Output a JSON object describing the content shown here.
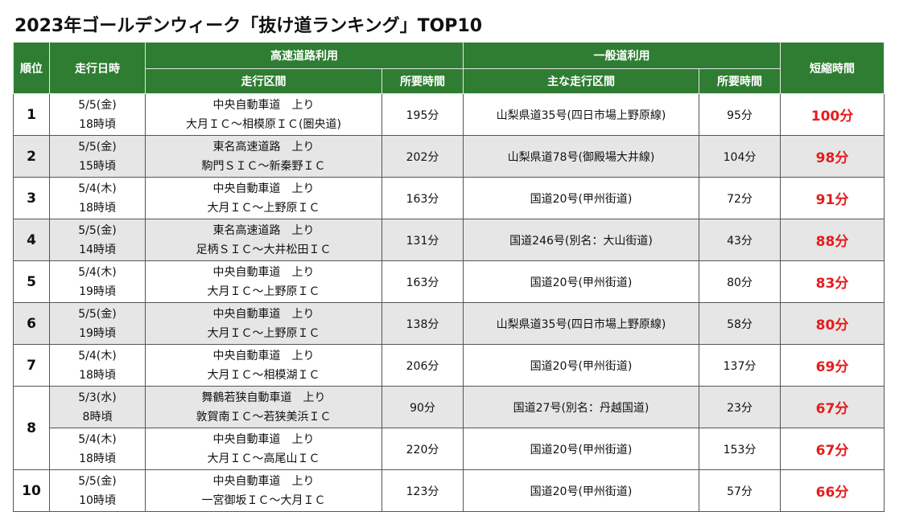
{
  "title": "2023年ゴールデンウィーク「抜け道ランキング」TOP10",
  "header": {
    "rank": "順位",
    "datetime": "走行日時",
    "highway_group": "高速道路利用",
    "highway_section": "走行区間",
    "highway_time": "所要時間",
    "general_group": "一般道利用",
    "general_section": "主な走行区間",
    "general_time": "所要時間",
    "saved": "短縮時間"
  },
  "colors": {
    "header_bg": "#2e7d32",
    "saved_text": "#e51c1c",
    "shade_row": "#e6e6e6"
  },
  "rows": [
    {
      "rank": "1",
      "date": "5/5(金)",
      "time": "18時頃",
      "hw_road": "中央自動車道　上り",
      "hw_section": "大月ＩＣ～相模原ＩＣ(圏央道)",
      "hw_time": "195分",
      "general": "山梨県道35号(四日市場上野原線)",
      "gen_time": "95分",
      "saved": "100分"
    },
    {
      "rank": "2",
      "date": "5/5(金)",
      "time": "15時頃",
      "hw_road": "東名高速道路　上り",
      "hw_section": "駒門ＳＩＣ～新秦野ＩＣ",
      "hw_time": "202分",
      "general": "山梨県道78号(御殿場大井線)",
      "gen_time": "104分",
      "saved": "98分"
    },
    {
      "rank": "3",
      "date": "5/4(木)",
      "time": "18時頃",
      "hw_road": "中央自動車道　上り",
      "hw_section": "大月ＩＣ～上野原ＩＣ",
      "hw_time": "163分",
      "general": "国道20号(甲州街道)",
      "gen_time": "72分",
      "saved": "91分"
    },
    {
      "rank": "4",
      "date": "5/5(金)",
      "time": "14時頃",
      "hw_road": "東名高速道路　上り",
      "hw_section": "足柄ＳＩＣ～大井松田ＩＣ",
      "hw_time": "131分",
      "general": "国道246号(別名：大山街道)",
      "gen_time": "43分",
      "saved": "88分"
    },
    {
      "rank": "5",
      "date": "5/4(木)",
      "time": "19時頃",
      "hw_road": "中央自動車道　上り",
      "hw_section": "大月ＩＣ～上野原ＩＣ",
      "hw_time": "163分",
      "general": "国道20号(甲州街道)",
      "gen_time": "80分",
      "saved": "83分"
    },
    {
      "rank": "6",
      "date": "5/5(金)",
      "time": "19時頃",
      "hw_road": "中央自動車道　上り",
      "hw_section": "大月ＩＣ～上野原ＩＣ",
      "hw_time": "138分",
      "general": "山梨県道35号(四日市場上野原線)",
      "gen_time": "58分",
      "saved": "80分"
    },
    {
      "rank": "7",
      "date": "5/4(木)",
      "time": "18時頃",
      "hw_road": "中央自動車道　上り",
      "hw_section": "大月ＩＣ～相模湖ＩＣ",
      "hw_time": "206分",
      "general": "国道20号(甲州街道)",
      "gen_time": "137分",
      "saved": "69分"
    },
    {
      "rank": "8",
      "date": "5/3(水)",
      "time": "8時頃",
      "hw_road": "舞鶴若狭自動車道　上り",
      "hw_section": "敦賀南ＩＣ～若狭美浜ＩＣ",
      "hw_time": "90分",
      "general": "国道27号(別名：丹越国道)",
      "gen_time": "23分",
      "saved": "67分"
    },
    {
      "rank": "",
      "date": "5/4(木)",
      "time": "18時頃",
      "hw_road": "中央自動車道　上り",
      "hw_section": "大月ＩＣ～高尾山ＩＣ",
      "hw_time": "220分",
      "general": "国道20号(甲州街道)",
      "gen_time": "153分",
      "saved": "67分"
    },
    {
      "rank": "10",
      "date": "5/5(金)",
      "time": "10時頃",
      "hw_road": "中央自動車道　上り",
      "hw_section": "一宮御坂ＩＣ～大月ＩＣ",
      "hw_time": "123分",
      "general": "国道20号(甲州街道)",
      "gen_time": "57分",
      "saved": "66分"
    }
  ]
}
